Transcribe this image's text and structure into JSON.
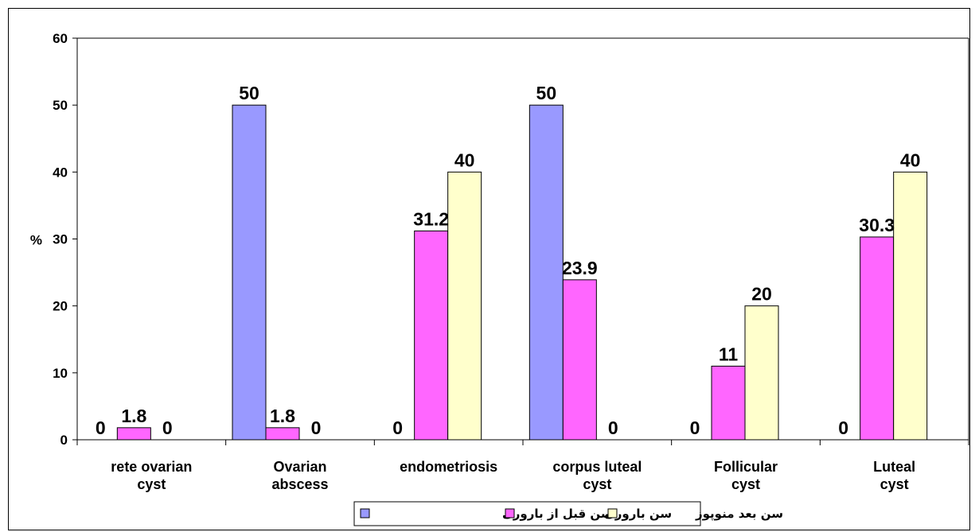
{
  "chart_data": {
    "type": "bar",
    "title": "",
    "xlabel": "",
    "ylabel": "%",
    "ylim": [
      0,
      60
    ],
    "yticks": [
      0,
      10,
      20,
      30,
      40,
      50,
      60
    ],
    "grid": false,
    "legend_position": "bottom",
    "categories": [
      [
        "rete ovarian",
        "cyst"
      ],
      [
        "Ovarian",
        "abscess"
      ],
      [
        "endometriosis"
      ],
      [
        "corpus luteal",
        "cyst"
      ],
      [
        "Follicular",
        "cyst"
      ],
      [
        "Luteal",
        "cyst"
      ]
    ],
    "series": [
      {
        "name": "سن قبل از باروری",
        "color": "#9999ff",
        "values": [
          0,
          50,
          0,
          50,
          0,
          0
        ],
        "labels": [
          "0",
          "50",
          "0",
          "50",
          "0",
          "0"
        ]
      },
      {
        "name": "سن باروری",
        "color": "#ff66ff",
        "values": [
          1.8,
          1.8,
          31.2,
          23.9,
          11,
          30.3
        ],
        "labels": [
          "1.8",
          "1.8",
          "31.2",
          "23.9",
          "11",
          "30.3"
        ]
      },
      {
        "name": "سن بعد منوپوز",
        "color": "#ffffcc",
        "values": [
          0,
          0,
          40,
          0,
          20,
          40
        ],
        "labels": [
          "0",
          "0",
          "40",
          "0",
          "20",
          "40"
        ]
      }
    ]
  }
}
